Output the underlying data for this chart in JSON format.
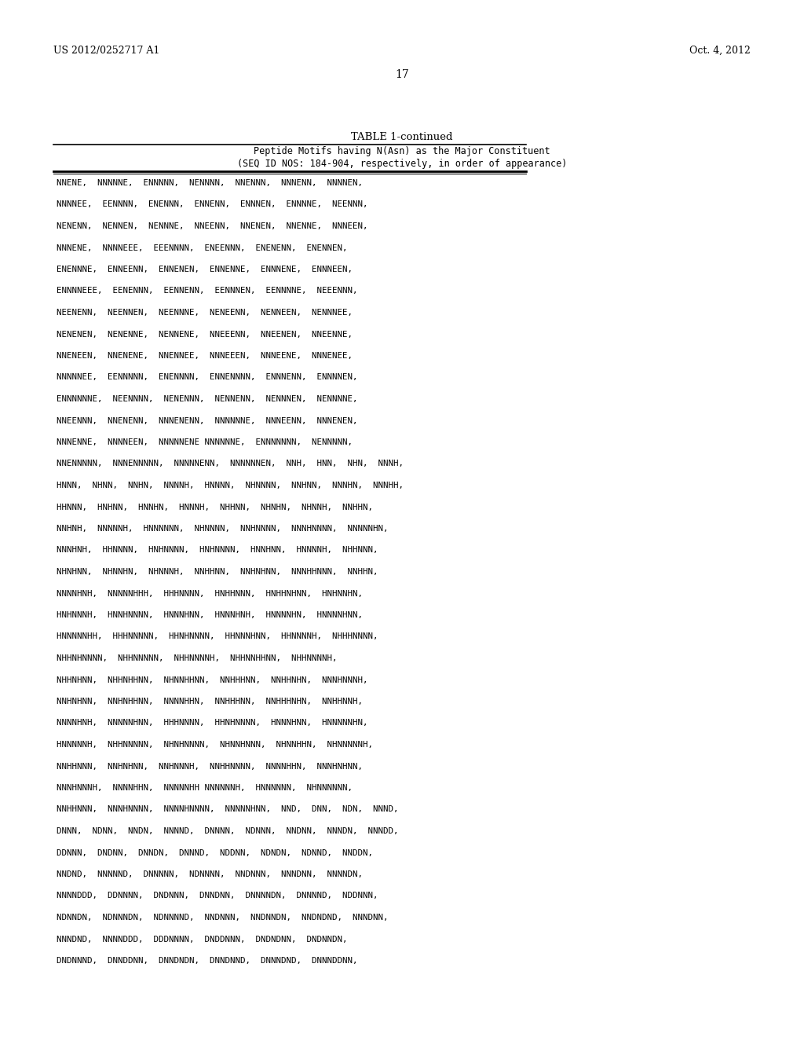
{
  "header_left": "US 2012/0252717 A1",
  "header_right": "Oct. 4, 2012",
  "page_number": "17",
  "table_title": "TABLE 1-continued",
  "col_header_line1": "Peptide Motifs having N(Asn) as the Major Constituent",
  "col_header_line2": "(SEQ ID NOS: 184-904, respectively, in order of appearance)",
  "content_lines": [
    "NNENE, NNNNNE, ENNNNN, NENNNN, NNENNN, NNNENN, NNNNEN,",
    "NNNNEE, EENNNN, ENENNN, ENNENN, ENNNEN, ENNNNE, NEENNN,",
    "NENENN, NENNEN, NENNNE, NNEENN, NNENEN, NNENNE, NNNEEN,",
    "NNNENE, NNNNEEE, EEENNNN, ENEENNN, ENENENN, ENENNEN,",
    "ENENNNE, ENNEENN, ENNENEN, ENNENNE, ENNNENE, ENNNEEN,",
    "ENNNNEEE, EENENNN, EENNENN, EENNNEN, EENNNNE, NEEENNN,",
    "NEENENN, NEENNEN, NEENNNE, NENEENN, NENNEEN, NENNNEE,",
    "NENENEN, NENENNE, NENNENE, NNEEENN, NNEENEN, NNEENNE,",
    "NNENEEN, NNENENE, NNENNEE, NNNEEEN, NNNEENE, NNNENEE,",
    "NNNNNEE, EENNNNN, ENENNNN, ENNENNNN, ENNNENN, ENNNNEN,",
    "ENNNNE, NEENNNN, NENENNN, NENNENN, NENNNEN, NENNNNE,",
    "NNEENNN, NNENENN, NNNENENN, NNNNNNE, NNNEENN, NNNENEN,",
    "NNNENNE, NNNNEEN, NNNNNENE NNNNNNE, ENNNNNNN, NENNNNN,",
    "NNENNNNN, NNNENNNNN, NNNNNENN, NNNNNNEN, NNH, HNN, NHN, NNNH,",
    "HNNN, NHNN, NNHN, NNNNH, HNNNN, NHNNNN, NNHNN, NNNHN, NNNHH,",
    "HHNNN, HNHNN, HNNHN, HNNNH, NHHNN, NHNHN, NHNN H, NNHHN,",
    "NNHNH, NNNNNH, HNNNNNN, NHNNNN, NNHNNNN, NNNHNNNN, NNNNNHN,",
    "NNNHNH, HHNNNN, HNHNNNN, HNHNNNN, HNNHNN, HNNNNH, NHHNNN,",
    "NHNHNN, NHNNHN, NHNNNH, NNHHNN, NNHNHNN, NNNHHNNN, NNHHN,",
    "NNNNHNH, NNNNNHHH, HHHNNNN, HNHHNNN, HNHHNHNN, HNHNNHN,",
    "HNHNNNH, HNNHNNNN, HNNNHNN, HNNNHNH, HNNNNHN, HNNNNHNN,",
    "HNNNNNHH, HHHNNNNN, HHNHNNNN, HHNNNHNN, HHNNNNH, NHHHNNNN,",
    "NHHNHNNNN, NHHNNNNN, NHHNNNNH, NHHNNHHNN, NHHNNNNH,",
    "NHHNHNN, NHHNHHNN, NHNNHHNN, NNHHHNN, NNHHNHN, NNNHNNNH,",
    "NNHNHNN, NNHNHHNN, NNNNHHN, NNHHHNN, NNHHHNHN, NNHHNNH,",
    "NNNNHNH, NNNNNHNN, HHHNNNN, HHNHNNNN, HNNNHNN, HNNNNNHN,",
    "HNNNNNH, NHHNNNNN, NHNHNNNN, NHNNHNNN, NHNNHHN, NHNNNNNH,",
    "NNHHNNN, NNHNHNN, NNHNNNH, NNHHNNNN, NNNNHHN, NNNHNHNN,",
    "NNNHNNNH, NNNNHHN, NNNNNHH NNNNNNH, HNNNNNN, NHNNNNNN,",
    "NNHHNNN, NNNHNNNN, NNNNHNNNN, NNNNNHNN, NND, DNN, NDN, NNND,",
    "DNNN, NDNN, NNDN, NNNND, DNNNN, NDNNN, NNDNN, NNNDN, NNNDD,",
    "DDNNN, DNDNN, DNNDN, DNNND, NDDNN, NDNDN, NDNND, NNDDN,",
    "NNDND, NNNNND, DNNNNN, NDNNNN, NNDNNN, NNNDNN, NNNNDN,",
    "NNNNDDD, DDNNNN, DNDNNN, DNNDNN, DNNNNDN, DNNNND, NDDNNN,",
    "NDNNDN, NDNNNDN, NDNNNND, NNDNNN, NNDNNDN, NNDNDND, NNNDNN,",
    "NNNDND, NNNNDDD, DDDNNNN, DNDDNNN, DNDNDNN, DNDNNDN,",
    "DNDNNND, DNNDDNN, DNNDNDN, DNNDNND, DNNNDND, DNNNDDNN,"
  ],
  "background_color": "#ffffff",
  "text_color": "#000000"
}
